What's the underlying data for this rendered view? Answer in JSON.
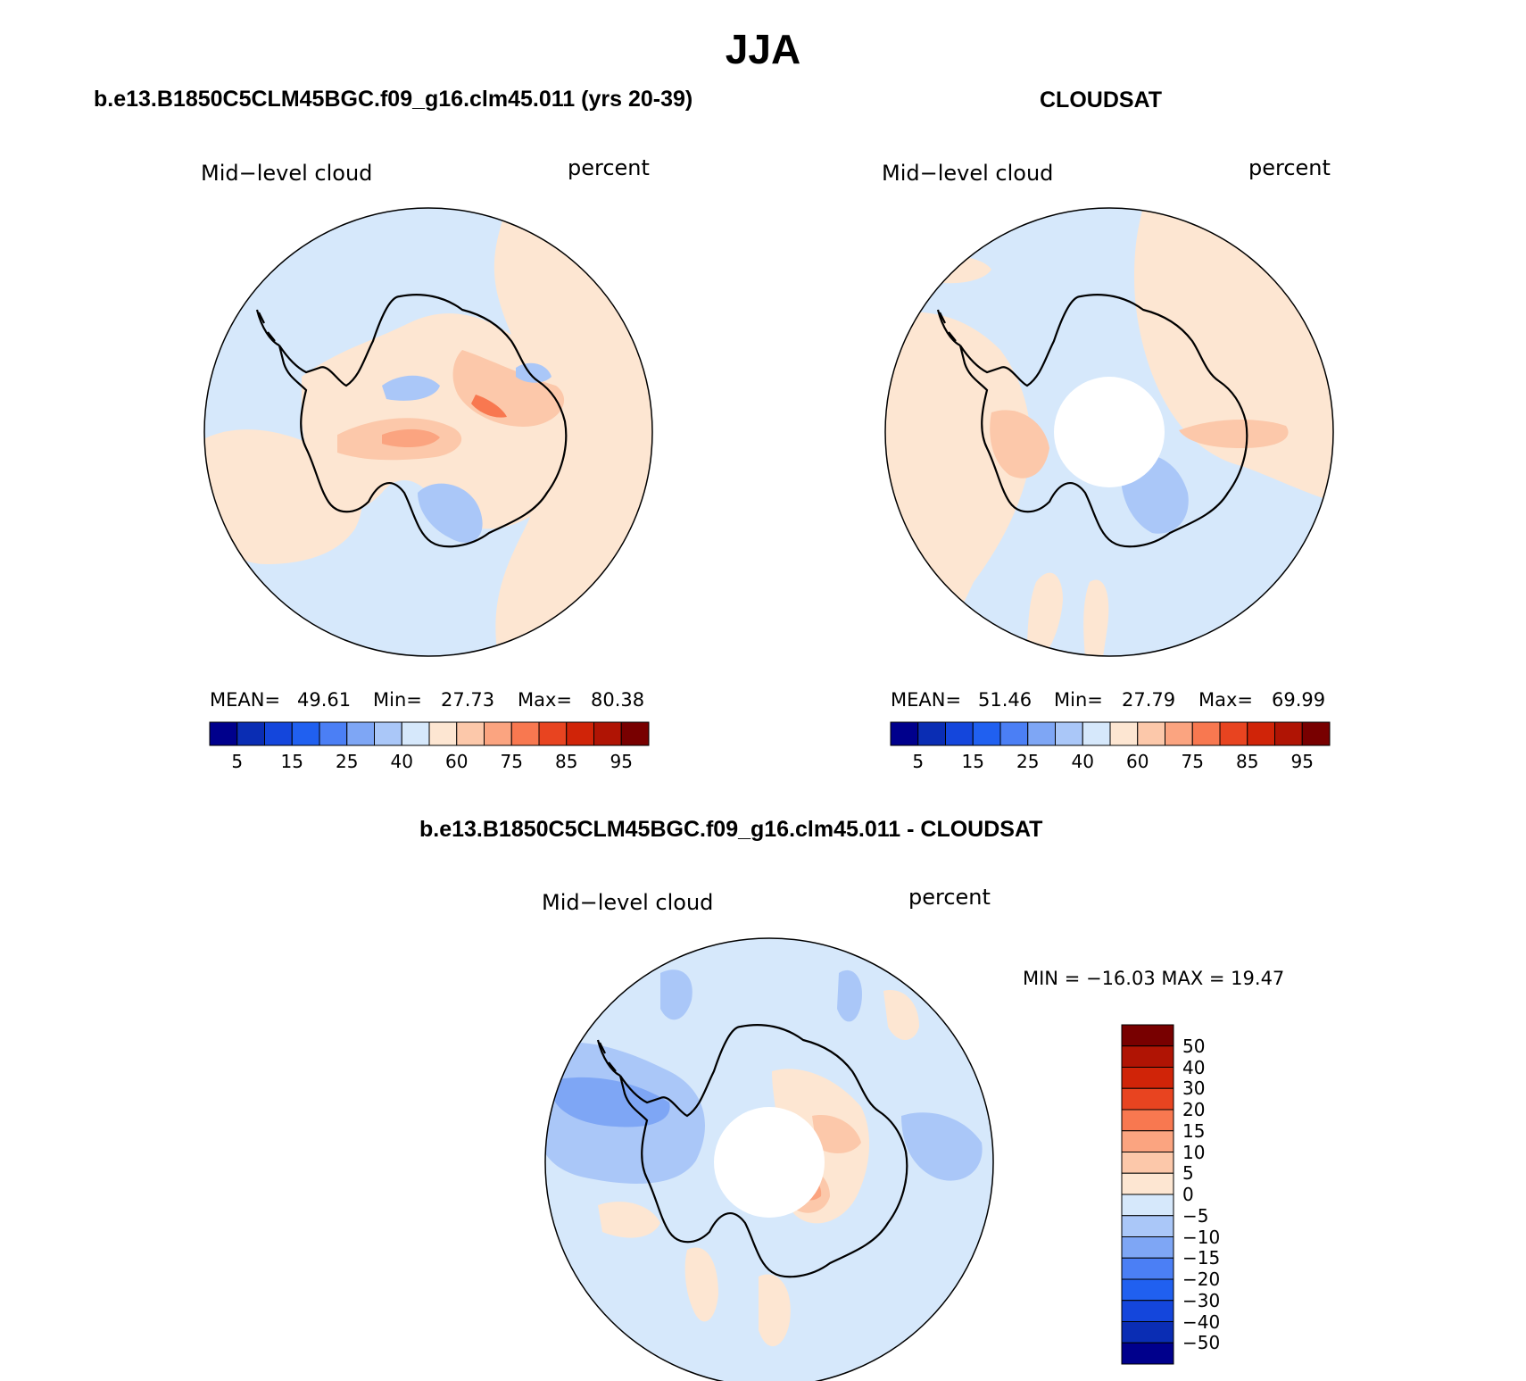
{
  "figure": {
    "title": "JJA",
    "colors": {
      "abs_scale": [
        "#00008c",
        "#0a2db4",
        "#1446dc",
        "#2060f0",
        "#4b7ff5",
        "#7ea6f5",
        "#aac7f8",
        "#d6e8fb",
        "#fde6d2",
        "#fcc8aa",
        "#fba480",
        "#f87850",
        "#e84420",
        "#d02408",
        "#b01404",
        "#780000"
      ],
      "diff_scale": [
        "#00008c",
        "#0a2db4",
        "#1446dc",
        "#2060f0",
        "#4b7ff5",
        "#7ea6f5",
        "#aac7f8",
        "#d6e8fb",
        "#fde6d2",
        "#fcc8aa",
        "#fba480",
        "#f87850",
        "#e84420",
        "#d02408",
        "#b01404",
        "#780000"
      ],
      "ocean_light_blue": "#d6e8fb",
      "light_orange": "#fde6d2"
    },
    "panels": [
      {
        "id": "model",
        "title": "b.e13.B1850C5CLM45BGC.f09_g16.clm45.011 (yrs 20-39)",
        "variable": "Mid−level cloud",
        "units": "percent",
        "stats": {
          "mean_label": "MEAN=",
          "mean": "49.61",
          "min_label": "Min=",
          "min": "27.73",
          "max_label": "Max=",
          "max": "80.38"
        },
        "colorbar_ticks": [
          "5",
          "15",
          "25",
          "40",
          "60",
          "75",
          "85",
          "95"
        ]
      },
      {
        "id": "obs",
        "title": "CLOUDSAT",
        "variable": "Mid−level cloud",
        "units": "percent",
        "stats": {
          "mean_label": "MEAN=",
          "mean": "51.46",
          "min_label": "Min=",
          "min": "27.79",
          "max_label": "Max=",
          "max": "69.99"
        },
        "colorbar_ticks": [
          "5",
          "15",
          "25",
          "40",
          "60",
          "75",
          "85",
          "95"
        ]
      },
      {
        "id": "diff",
        "title": "b.e13.B1850C5CLM45BGC.f09_g16.clm45.011 - CLOUDSAT",
        "variable": "Mid−level cloud",
        "units": "percent",
        "stats": {
          "text": "MIN = −16.03 MAX =   19.47"
        },
        "colorbar_ticks": [
          "50",
          "40",
          "30",
          "20",
          "15",
          "10",
          "5",
          "0",
          "−5",
          "−10",
          "−15",
          "−20",
          "−30",
          "−40",
          "−50"
        ]
      }
    ]
  }
}
